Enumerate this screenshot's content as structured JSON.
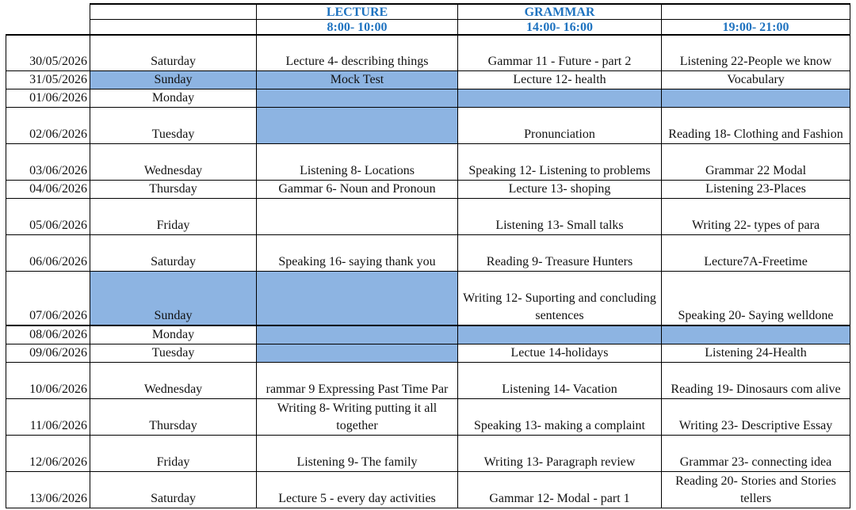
{
  "header": {
    "lecture_title": "LECTURE",
    "grammar_title": "GRAMMAR",
    "slot1": "8:00- 10:00",
    "slot2": "14:00- 16:00",
    "slot3": "19:00- 21:00"
  },
  "colors": {
    "highlight": "#8DB4E2",
    "header_text": "#1F73C0"
  },
  "rows": [
    {
      "date": "30/05/2026",
      "day": "Saturday",
      "s1": "Lecture 4- describing things",
      "s2": "Gammar 11 - Future - part 2",
      "s3": "Listening 22-People we know"
    },
    {
      "date": "31/05/2026",
      "day": "Sunday",
      "s1": "Mock Test",
      "s2": "Lecture 12- health",
      "s3": "Vocabulary"
    },
    {
      "date": "01/06/2026",
      "day": "Monday",
      "s1": "",
      "s2": "",
      "s3": ""
    },
    {
      "date": "02/06/2026",
      "day": "Tuesday",
      "s1": "",
      "s2": "Pronunciation",
      "s3": "Reading 18- Clothing and Fashion"
    },
    {
      "date": "03/06/2026",
      "day": "Wednesday",
      "s1": "Listening 8- Locations",
      "s2": "Speaking 12- Listening to problems",
      "s3": "Grammar 22 Modal"
    },
    {
      "date": "04/06/2026",
      "day": "Thursday",
      "s1": "Gammar 6- Noun and Pronoun",
      "s2": "Lecture 13- shoping",
      "s3": "Listening 23-Places"
    },
    {
      "date": "05/06/2026",
      "day": "Friday",
      "s1": "",
      "s2": "Listening 13- Small talks",
      "s3": "Writing 22- types of para"
    },
    {
      "date": "06/06/2026",
      "day": "Saturday",
      "s1": "Speaking 16- saying thank you",
      "s2": "Reading 9- Treasure Hunters",
      "s3": "Lecture7A-Freetime"
    },
    {
      "date": "07/06/2026",
      "day": "Sunday",
      "s1": "",
      "s2": "Writing 12- Suporting and concluding sentences",
      "s3": "Speaking 20- Saying welldone"
    },
    {
      "date": "08/06/2026",
      "day": "Monday",
      "s1": "",
      "s2": "",
      "s3": ""
    },
    {
      "date": "09/06/2026",
      "day": "Tuesday",
      "s1": "",
      "s2": "Lectue 14-holidays",
      "s3": "Listening 24-Health"
    },
    {
      "date": "10/06/2026",
      "day": "Wednesday",
      "s1": "rammar 9 Expressing Past Time Par",
      "s2": "Listening 14- Vacation",
      "s3": "Reading 19- Dinosaurs com alive"
    },
    {
      "date": "11/06/2026",
      "day": "Thursday",
      "s1": "Writing 8- Writing putting it all together",
      "s2": "Speaking 13- making a complaint",
      "s3": "Writing 23- Descriptive Essay"
    },
    {
      "date": "12/06/2026",
      "day": "Friday",
      "s1": "Listening 9- The family",
      "s2": "Writing 13- Paragraph review",
      "s3": "Grammar 23- connecting idea"
    },
    {
      "date": "13/06/2026",
      "day": "Saturday",
      "s1": "Lecture  5 - every day activities",
      "s2": "Gammar 12- Modal - part 1",
      "s3": "Reading 20-  Stories and Stories tellers"
    }
  ]
}
